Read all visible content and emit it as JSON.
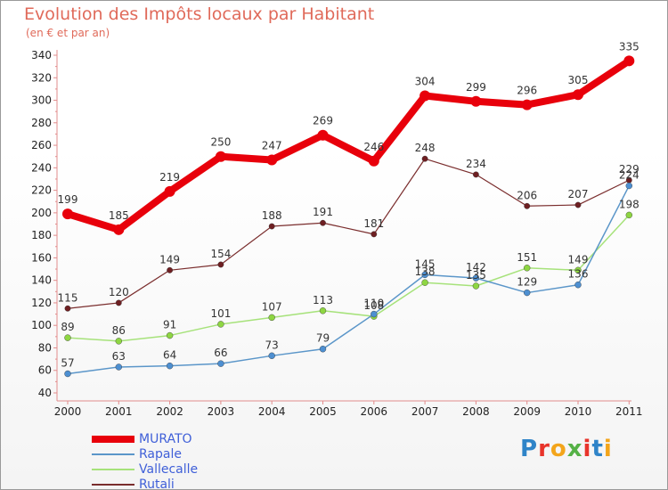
{
  "header": {
    "title": "Evolution des Impôts locaux par Habitant",
    "subtitle": "(en € et par an)"
  },
  "logo": {
    "text": "Proxiti",
    "colors": [
      "#2f84c8",
      "#e8342b",
      "#f3a51b",
      "#55b146",
      "#e8342b",
      "#2f84c8",
      "#f3a51b"
    ]
  },
  "chart_data": {
    "type": "line",
    "title": "Evolution des Impôts locaux par Habitant",
    "subtitle": "(en € et par an)",
    "xlabel": "",
    "ylabel": "",
    "ylim": [
      40,
      345
    ],
    "yticks": [
      40,
      60,
      80,
      100,
      120,
      140,
      160,
      180,
      200,
      220,
      240,
      260,
      280,
      300,
      320,
      340
    ],
    "grid": false,
    "legend_position": "bottom-left",
    "categories": [
      "2000",
      "2001",
      "2002",
      "2003",
      "2004",
      "2005",
      "2006",
      "2007",
      "2008",
      "2009",
      "2010",
      "2011"
    ],
    "series": [
      {
        "name": "MURATO",
        "color": "#e8000b",
        "marker": "#e8000b",
        "width": 8,
        "radius": 6,
        "values": [
          199,
          185,
          219,
          250,
          247,
          269,
          246,
          304,
          299,
          296,
          305,
          335
        ]
      },
      {
        "name": "Rapale",
        "color": "#5b96c9",
        "marker": "#4d8fd1",
        "width": 1.5,
        "radius": 3.5,
        "values": [
          57,
          63,
          64,
          66,
          73,
          79,
          110,
          145,
          142,
          129,
          136,
          224
        ]
      },
      {
        "name": "Vallecalle",
        "color": "#a6e27a",
        "marker": "#8ed642",
        "width": 1.5,
        "radius": 3.5,
        "values": [
          89,
          86,
          91,
          101,
          107,
          113,
          108,
          138,
          135,
          151,
          149,
          198
        ]
      },
      {
        "name": "Rutali",
        "color": "#7a2d2d",
        "marker": "#6e1f22",
        "width": 1.2,
        "radius": 3.2,
        "values": [
          115,
          120,
          149,
          154,
          188,
          191,
          181,
          248,
          234,
          206,
          207,
          229
        ]
      }
    ]
  }
}
